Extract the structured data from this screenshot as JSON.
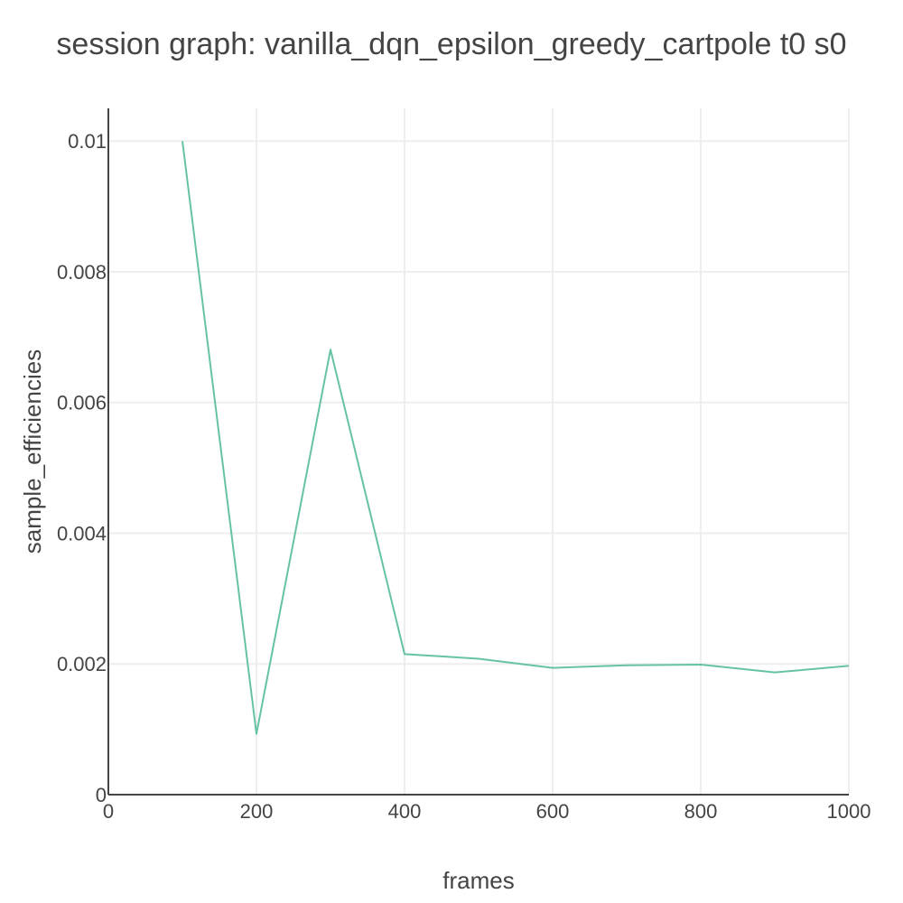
{
  "chart_data": {
    "type": "line",
    "title": "session graph: vanilla_dqn_epsilon_greedy_cartpole t0 s0",
    "xlabel": "frames",
    "ylabel": "sample_efficiencies",
    "xlim": [
      0,
      1000
    ],
    "ylim": [
      0,
      0.0105
    ],
    "x_ticks": [
      0,
      200,
      400,
      600,
      800,
      1000
    ],
    "y_ticks": [
      0,
      0.002,
      0.004,
      0.006,
      0.008,
      0.01
    ],
    "x_tick_labels": [
      "0",
      "200",
      "400",
      "600",
      "800",
      "1000"
    ],
    "y_tick_labels": [
      "0",
      "0.002",
      "0.004",
      "0.006",
      "0.008",
      "0.01"
    ],
    "grid": true,
    "legend": "none",
    "series": [
      {
        "color": "#66c2a5",
        "x": [
          100,
          200,
          300,
          400,
          500,
          600,
          700,
          800,
          900,
          1000
        ],
        "y": [
          0.01,
          0.00093,
          0.00681,
          0.00215,
          0.00208,
          0.00194,
          0.00198,
          0.00199,
          0.00187,
          0.00197
        ]
      }
    ]
  }
}
